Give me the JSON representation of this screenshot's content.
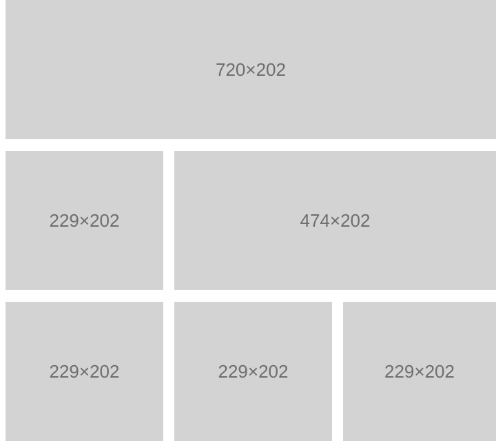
{
  "placeholders": {
    "row1": {
      "label": "720×202"
    },
    "row2": [
      {
        "label": "229×202"
      },
      {
        "label": "474×202"
      }
    ],
    "row3": [
      {
        "label": "229×202"
      },
      {
        "label": "229×202"
      },
      {
        "label": "229×202"
      }
    ]
  },
  "colors": {
    "tile_background": "#d3d3d3",
    "tile_text": "#6e6e6e",
    "page_background": "#ffffff"
  }
}
